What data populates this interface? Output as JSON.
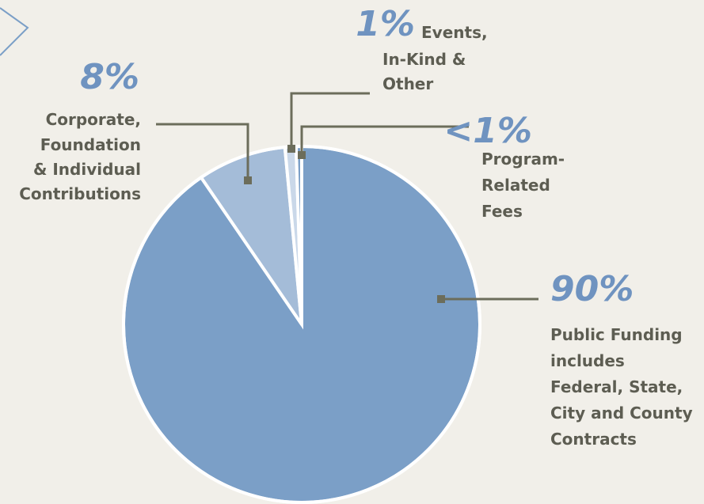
{
  "chart_data": {
    "type": "pie",
    "categories": [
      "Public Funding\nincludes\nFederal, State,\nCity and County\nContracts",
      "Corporate,\nFoundation\n& Individual\nContributions",
      "Events,\nIn-Kind &\nOther",
      "Program-\nRelated\nFees"
    ],
    "values": [
      90,
      8,
      1,
      0.5
    ],
    "value_labels": [
      "90%",
      "8%",
      "1%",
      "<1%"
    ],
    "colors": [
      "#7b9fc7",
      "#a4bcd8",
      "#cad8e9",
      "#7b9fc7"
    ]
  }
}
